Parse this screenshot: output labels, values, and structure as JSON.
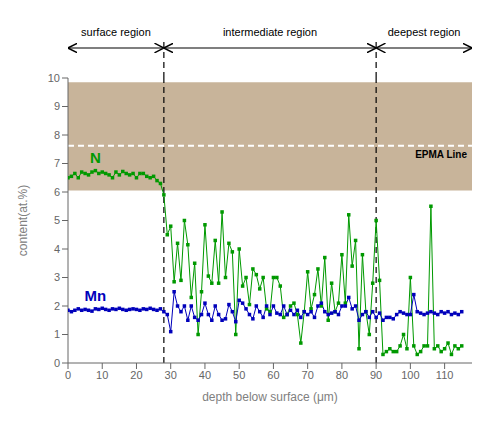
{
  "chart_data": {
    "type": "line",
    "xlabel": "depth below surface (μm)",
    "ylabel": "content(at.%)",
    "xlim": [
      0,
      118
    ],
    "ylim": [
      0,
      10
    ],
    "xticks": [
      0,
      10,
      20,
      30,
      40,
      50,
      60,
      70,
      80,
      90,
      100,
      110
    ],
    "yticks": [
      0,
      1,
      2,
      3,
      4,
      5,
      6,
      7,
      8,
      9,
      10
    ],
    "grid": false,
    "x": [
      0,
      1,
      2,
      3,
      4,
      5,
      6,
      7,
      8,
      9,
      10,
      11,
      12,
      13,
      14,
      15,
      16,
      17,
      18,
      19,
      20,
      21,
      22,
      23,
      24,
      25,
      26,
      27,
      28,
      29,
      30,
      31,
      32,
      33,
      34,
      35,
      36,
      37,
      38,
      39,
      40,
      41,
      42,
      43,
      44,
      45,
      46,
      47,
      48,
      49,
      50,
      51,
      52,
      53,
      54,
      55,
      56,
      57,
      58,
      59,
      60,
      61,
      62,
      63,
      64,
      65,
      66,
      67,
      68,
      69,
      70,
      71,
      72,
      73,
      74,
      75,
      76,
      77,
      78,
      79,
      80,
      81,
      82,
      83,
      84,
      85,
      86,
      87,
      88,
      89,
      90,
      91,
      92,
      93,
      94,
      95,
      96,
      97,
      98,
      99,
      100,
      101,
      102,
      103,
      104,
      105,
      106,
      107,
      108,
      109,
      110,
      111,
      112,
      113,
      114,
      115
    ],
    "series": [
      {
        "name": "N",
        "color": "#009900",
        "marker": "square",
        "line_style": "solid",
        "values": [
          6.5,
          6.55,
          6.65,
          6.5,
          6.7,
          6.65,
          6.6,
          6.7,
          6.75,
          6.65,
          6.7,
          6.65,
          6.6,
          6.5,
          6.7,
          6.6,
          6.72,
          6.65,
          6.6,
          6.65,
          6.5,
          6.65,
          6.65,
          6.55,
          6.5,
          6.55,
          6.4,
          6.3,
          5.9,
          4.5,
          4.8,
          2.85,
          4.2,
          2.9,
          5.0,
          4.15,
          2.3,
          3.5,
          1.0,
          2.5,
          4.85,
          3.05,
          2.8,
          4.3,
          2.8,
          5.3,
          3.0,
          4.2,
          3.9,
          1.0,
          4.0,
          2.7,
          3.0,
          2.05,
          3.3,
          3.1,
          2.6,
          3.0,
          1.9,
          1.8,
          3.0,
          3.0,
          2.7,
          1.6,
          1.7,
          2.0,
          2.1,
          1.7,
          0.7,
          1.8,
          3.2,
          1.9,
          2.4,
          3.3,
          2.0,
          3.7,
          1.5,
          2.8,
          1.8,
          2.1,
          3.8,
          2.1,
          5.2,
          3.4,
          4.3,
          0.5,
          3.8,
          1.8,
          1.0,
          2.8,
          5.0,
          2.9,
          0.3,
          0.4,
          0.5,
          0.4,
          0.4,
          0.6,
          1.0,
          0.5,
          3.0,
          0.6,
          0.3,
          0.4,
          0.6,
          0.6,
          5.5,
          0.5,
          0.6,
          0.4,
          0.5,
          0.7,
          0.3,
          0.6,
          0.5,
          0.6
        ]
      },
      {
        "name": "Mn",
        "color": "#0000bb",
        "marker": "square",
        "line_style": "solid",
        "values": [
          1.85,
          1.8,
          1.85,
          1.9,
          1.85,
          1.88,
          1.85,
          1.82,
          1.9,
          1.88,
          1.92,
          1.88,
          1.85,
          1.9,
          1.88,
          1.92,
          1.88,
          1.85,
          1.88,
          1.9,
          1.88,
          1.85,
          1.9,
          1.88,
          1.92,
          1.88,
          1.85,
          1.9,
          1.8,
          1.7,
          1.1,
          2.5,
          2.0,
          1.8,
          2.0,
          1.5,
          2.0,
          1.6,
          1.5,
          1.7,
          2.1,
          1.7,
          1.5,
          2.0,
          1.7,
          1.5,
          1.55,
          2.05,
          1.8,
          1.45,
          2.2,
          2.1,
          1.9,
          1.7,
          1.55,
          2.0,
          1.8,
          1.6,
          2.0,
          1.7,
          2.0,
          1.75,
          1.7,
          2.0,
          1.7,
          1.85,
          1.7,
          1.85,
          1.6,
          1.8,
          1.7,
          1.8,
          1.6,
          2.0,
          2.1,
          1.8,
          1.7,
          1.75,
          1.8,
          1.7,
          2.0,
          2.0,
          2.3,
          1.9,
          2.0,
          1.5,
          1.7,
          1.8,
          1.6,
          1.8,
          1.6,
          1.75,
          1.5,
          1.6,
          1.6,
          1.55,
          1.7,
          1.8,
          1.75,
          1.7,
          1.7,
          2.4,
          1.8,
          1.75,
          1.7,
          1.75,
          1.8,
          1.75,
          1.7,
          1.8,
          1.75,
          1.8,
          1.7,
          1.75,
          1.7,
          1.8
        ]
      }
    ],
    "bands": [
      {
        "y1": 6.05,
        "y2": 9.85,
        "color": "#c8b49a"
      }
    ],
    "hlines": [
      {
        "y": 7.62,
        "color": "white",
        "line_style": "dashed",
        "label": "EPMA Line"
      }
    ],
    "vlines": [
      {
        "x": 28,
        "color": "black",
        "line_style": "dashed"
      },
      {
        "x": 90,
        "color": "black",
        "line_style": "dashed"
      }
    ],
    "region_labels": [
      "surface region",
      "intermediate region",
      "deepest region"
    ]
  }
}
